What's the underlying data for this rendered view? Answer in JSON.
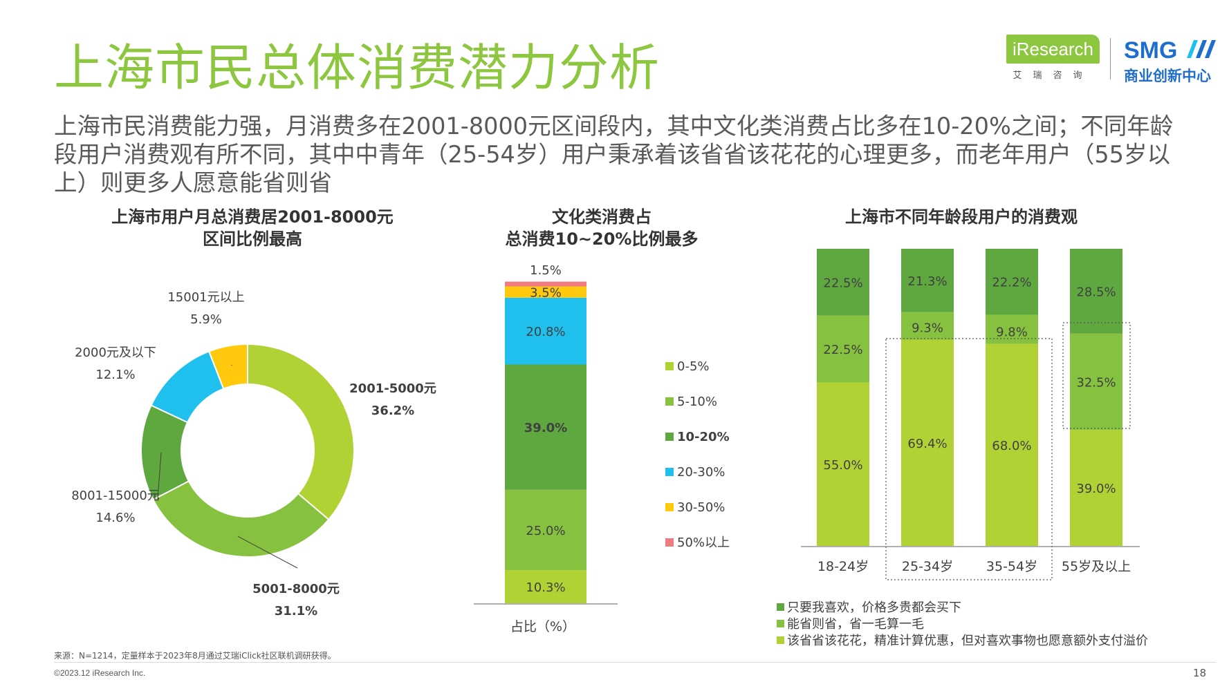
{
  "header": {
    "title": "上海市民总体消费潜力分析",
    "subtitle": "上海市民消费能力强，月消费多在2001-8000元区间段内，其中文化类消费占比多在10-20%之间；不同年龄段用户消费观有所不同，其中中青年（25-54岁）用户秉承着该省省该花花的心理更多，而老年用户（55岁以上）则更多人愿意能省则省"
  },
  "logos": {
    "iresearch": "iResearch",
    "iresearch_cn": "艾瑞咨询",
    "smg": "SMG",
    "smg_cn": "商业创新中心"
  },
  "colors": {
    "green_dark": "#5ea83f",
    "green_mid": "#86c23f",
    "green_light": "#b1d235",
    "cyan": "#1fc0ee",
    "yellow": "#ffc90e",
    "pink": "#f07c82",
    "title_green": "#8dc63f"
  },
  "chart_data": [
    {
      "type": "pie",
      "title_lines": [
        "上海市用户月总消费居2001-8000元",
        "区间比例最高"
      ],
      "labels": [
        "2001-5000元",
        "5001-8000元",
        "8001-15000元",
        "2000元及以下",
        "15001元以上"
      ],
      "values": [
        36.2,
        31.1,
        14.6,
        12.1,
        5.9
      ],
      "value_labels": [
        "36.2%",
        "31.1%",
        "14.6%",
        "12.1%",
        "5.9%"
      ],
      "colors": [
        "#b1d235",
        "#86c23f",
        "#5ea83f",
        "#1fc0ee",
        "#ffc90e"
      ],
      "donut": true
    },
    {
      "type": "bar",
      "stacked": true,
      "title_lines": [
        "文化类消费占",
        "总消费10~20%比例最多"
      ],
      "categories": [
        "占比（%）"
      ],
      "series": [
        {
          "name": "0-5%",
          "values": [
            10.3
          ],
          "label": "10.3%",
          "color": "#b1d235"
        },
        {
          "name": "5-10%",
          "values": [
            25.0
          ],
          "label": "25.0%",
          "color": "#86c23f"
        },
        {
          "name": "10-20%",
          "values": [
            39.0
          ],
          "label": "39.0%",
          "color": "#5ea83f"
        },
        {
          "name": "20-30%",
          "values": [
            20.8
          ],
          "label": "20.8%",
          "color": "#1fc0ee"
        },
        {
          "name": "30-50%",
          "values": [
            3.5
          ],
          "label": "3.5%",
          "color": "#ffc90e"
        },
        {
          "name": "50%以上",
          "values": [
            1.5
          ],
          "label": "1.5%",
          "color": "#f07c82"
        }
      ],
      "legend_position": "right"
    },
    {
      "type": "bar",
      "stacked": true,
      "title": "上海市不同年龄段用户的消费观",
      "categories": [
        "18-24岁",
        "25-34岁",
        "35-54岁",
        "55岁及以上"
      ],
      "series": [
        {
          "name": "该省省该花花，精准计算优惠，但对喜欢事物也愿意额外支付溢价",
          "values": [
            55.0,
            69.4,
            68.0,
            39.0
          ],
          "labels": [
            "55.0%",
            "69.4%",
            "68.0%",
            "39.0%"
          ],
          "color": "#b1d235"
        },
        {
          "name": "能省则省，省一毛算一毛",
          "values": [
            22.5,
            9.3,
            9.8,
            32.5
          ],
          "labels": [
            "22.5%",
            "9.3%",
            "9.8%",
            "32.5%"
          ],
          "color": "#86c23f"
        },
        {
          "name": "只要我喜欢，价格多贵都会买下",
          "values": [
            22.5,
            21.3,
            22.2,
            28.5
          ],
          "labels": [
            "22.5%",
            "21.3%",
            "22.2%",
            "28.5%"
          ],
          "color": "#5ea83f"
        }
      ],
      "legend_order": [
        2,
        1,
        0
      ],
      "legend_position": "bottom"
    }
  ],
  "footer": {
    "source": "来源：N=1214，定量样本于2023年8月通过艾瑞iClick社区联机调研获得。",
    "copyright": "©2023.12 iResearch Inc.",
    "page": "18"
  }
}
